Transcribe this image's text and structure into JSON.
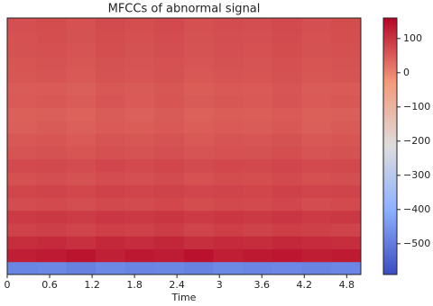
{
  "chart_data": {
    "type": "heatmap",
    "title": "MFCCs of abnormal signal",
    "xlabel": "Time",
    "xlim": [
      0,
      5.0
    ],
    "xticks": [
      0,
      0.6,
      1.2,
      1.8,
      2.4,
      3,
      3.6,
      4.2,
      4.8
    ],
    "ylim": [
      0,
      20
    ],
    "colormap": "coolwarm",
    "clim": [
      -590,
      160
    ],
    "cticks": [
      {
        "value": -500,
        "label": "−500"
      },
      {
        "value": -400,
        "label": "−400"
      },
      {
        "value": -300,
        "label": "−300"
      },
      {
        "value": -200,
        "label": "−200"
      },
      {
        "value": -100,
        "label": "−100"
      },
      0,
      100
    ],
    "z": [
      [
        -482,
        -478,
        -490,
        -475,
        -485,
        -480,
        -488,
        -476,
        -483,
        -479,
        -486,
        -481
      ],
      [
        128,
        132,
        140,
        125,
        135,
        130,
        142,
        127,
        133,
        138,
        129,
        131
      ],
      [
        108,
        112,
        105,
        115,
        110,
        118,
        106,
        113,
        109,
        116,
        111,
        107
      ],
      [
        82,
        86,
        80,
        88,
        84,
        90,
        81,
        87,
        83,
        89,
        85,
        80
      ],
      [
        92,
        95,
        90,
        97,
        93,
        98,
        91,
        96,
        94,
        99,
        92,
        95
      ],
      [
        70,
        73,
        68,
        75,
        71,
        76,
        69,
        74,
        72,
        77,
        70,
        73
      ],
      [
        78,
        80,
        76,
        82,
        79,
        83,
        77,
        81,
        78,
        84,
        79,
        80
      ],
      [
        65,
        68,
        63,
        70,
        66,
        71,
        64,
        69,
        67,
        72,
        65,
        68
      ],
      [
        72,
        75,
        70,
        77,
        73,
        78,
        71,
        76,
        74,
        79,
        72,
        75
      ],
      [
        60,
        63,
        58,
        65,
        61,
        66,
        59,
        64,
        62,
        67,
        60,
        63
      ],
      [
        55,
        58,
        53,
        60,
        56,
        61,
        54,
        59,
        57,
        62,
        55,
        58
      ],
      [
        48,
        51,
        46,
        53,
        49,
        54,
        47,
        52,
        50,
        55,
        48,
        51
      ],
      [
        45,
        48,
        43,
        50,
        46,
        51,
        44,
        49,
        47,
        52,
        45,
        48
      ],
      [
        52,
        55,
        50,
        57,
        53,
        58,
        51,
        56,
        54,
        59,
        52,
        55
      ],
      [
        50,
        53,
        48,
        55,
        51,
        56,
        49,
        54,
        52,
        57,
        50,
        53
      ],
      [
        56,
        59,
        54,
        61,
        57,
        62,
        55,
        60,
        58,
        63,
        56,
        59
      ],
      [
        58,
        61,
        56,
        63,
        59,
        64,
        57,
        62,
        60,
        65,
        58,
        61
      ],
      [
        62,
        65,
        60,
        67,
        63,
        68,
        61,
        66,
        64,
        69,
        62,
        65
      ],
      [
        64,
        67,
        62,
        69,
        65,
        70,
        63,
        68,
        66,
        71,
        64,
        67
      ],
      [
        66,
        69,
        64,
        71,
        67,
        72,
        65,
        70,
        68,
        73,
        66,
        69
      ]
    ]
  }
}
